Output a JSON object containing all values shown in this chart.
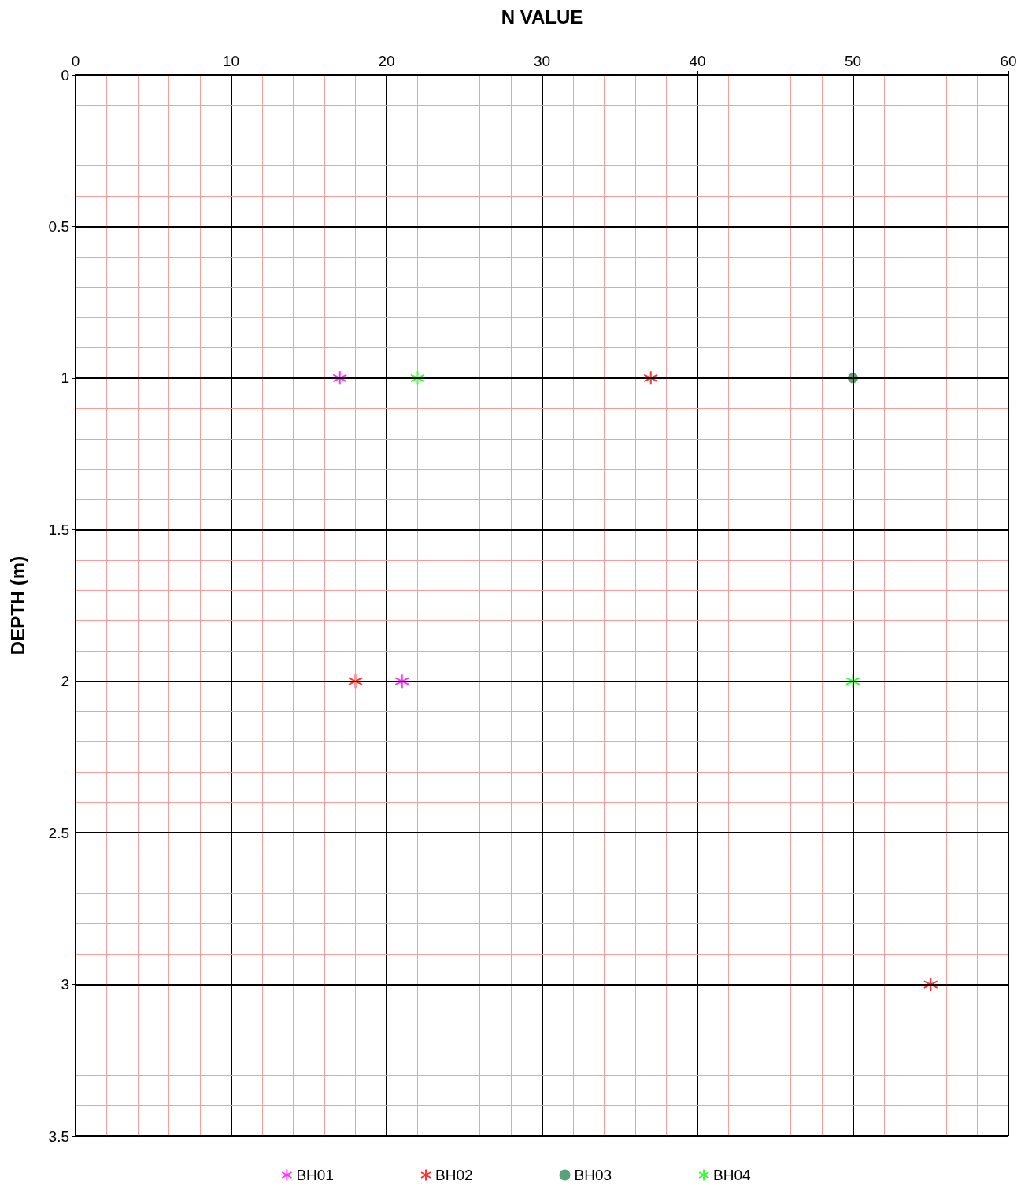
{
  "chart_data": {
    "type": "scatter",
    "xlabel": "N VALUE",
    "ylabel": "DEPTH (m)",
    "xlim": [
      0,
      60
    ],
    "xticks": [
      0,
      {
        "value": 2,
        "label": null
      },
      {
        "value": 4,
        "label": null
      },
      {
        "value": 6,
        "label": null
      },
      {
        "value": 8,
        "label": null
      },
      10,
      {
        "value": 12,
        "label": null
      },
      {
        "value": 14,
        "label": null
      },
      {
        "value": 16,
        "label": null
      },
      {
        "value": 18,
        "label": null
      },
      20,
      {
        "value": 22,
        "label": null
      },
      {
        "value": 24,
        "label": null
      },
      {
        "value": 26,
        "label": null
      },
      {
        "value": 28,
        "label": null
      },
      30,
      {
        "value": 32,
        "label": null
      },
      {
        "value": 34,
        "label": null
      },
      {
        "value": 36,
        "label": null
      },
      {
        "value": 38,
        "label": null
      },
      40,
      {
        "value": 42,
        "label": null
      },
      {
        "value": 44,
        "label": null
      },
      {
        "value": 46,
        "label": null
      },
      {
        "value": 48,
        "label": null
      },
      50,
      {
        "value": 52,
        "label": null
      },
      {
        "value": 54,
        "label": null
      },
      {
        "value": 56,
        "label": null
      },
      {
        "value": 58,
        "label": null
      },
      60
    ],
    "ylim": [
      3.5,
      0
    ],
    "yticks": [
      0,
      {
        "value": 0.1,
        "label": null
      },
      {
        "value": 0.2,
        "label": null
      },
      {
        "value": 0.3,
        "label": null
      },
      {
        "value": 0.4,
        "label": null
      },
      0.5,
      {
        "value": 0.6,
        "label": null
      },
      {
        "value": 0.7,
        "label": null
      },
      {
        "value": 0.8,
        "label": null
      },
      {
        "value": 0.9,
        "label": null
      },
      1,
      {
        "value": 1.1,
        "label": null
      },
      {
        "value": 1.2,
        "label": null
      },
      {
        "value": 1.3,
        "label": null
      },
      {
        "value": 1.4,
        "label": null
      },
      1.5,
      {
        "value": 1.6,
        "label": null
      },
      {
        "value": 1.7,
        "label": null
      },
      {
        "value": 1.8,
        "label": null
      },
      {
        "value": 1.9,
        "label": null
      },
      2,
      {
        "value": 2.1,
        "label": null
      },
      {
        "value": 2.2,
        "label": null
      },
      {
        "value": 2.3,
        "label": null
      },
      {
        "value": 2.4,
        "label": null
      },
      2.5,
      {
        "value": 2.6,
        "label": null
      },
      {
        "value": 2.7,
        "label": null
      },
      {
        "value": 2.8,
        "label": null
      },
      {
        "value": 2.9,
        "label": null
      },
      3,
      {
        "value": 3.1,
        "label": null
      },
      {
        "value": 3.2,
        "label": null
      },
      {
        "value": 3.3,
        "label": null
      },
      {
        "value": 3.4,
        "label": null
      },
      3.5
    ],
    "grid": true,
    "legend": "bottom",
    "series": [
      {
        "name": "BH01",
        "color": "#ff00ff",
        "marker": "cross",
        "x": [
          17,
          21
        ],
        "values": [
          1,
          2
        ]
      },
      {
        "name": "BH02",
        "color": "#ff0000",
        "marker": "cross",
        "x": [
          37,
          18,
          55
        ],
        "values": [
          1,
          2,
          3
        ]
      },
      {
        "name": "BH03",
        "color": "#2e8b57",
        "marker": "circle",
        "x": [
          50
        ],
        "values": [
          1
        ]
      },
      {
        "name": "BH04",
        "color": "#00ff00",
        "marker": "cross",
        "x": [
          22,
          50
        ],
        "values": [
          1,
          2
        ]
      }
    ]
  }
}
